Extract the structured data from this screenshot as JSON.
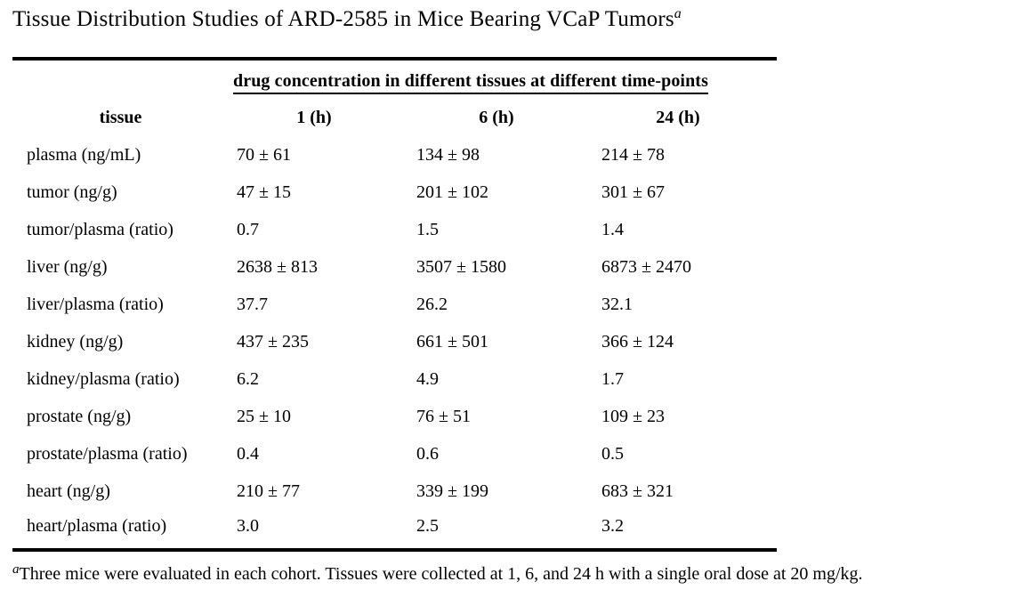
{
  "title": {
    "text": "Tissue Distribution Studies of ARD-2585 in Mice Bearing VCaP Tumors",
    "footnote_marker": "a"
  },
  "table": {
    "spanner_header": "drug concentration in different tissues at different time-points",
    "columns": [
      "tissue",
      "1 (h)",
      "6 (h)",
      "24 (h)"
    ],
    "rows": [
      {
        "tissue": "plasma (ng/mL)",
        "values": [
          "70 ± 61",
          "134 ± 98",
          "214 ± 78"
        ]
      },
      {
        "tissue": "tumor (ng/g)",
        "values": [
          "47 ± 15",
          "201 ± 102",
          "301 ± 67"
        ]
      },
      {
        "tissue": "tumor/plasma (ratio)",
        "values": [
          "0.7",
          "1.5",
          "1.4"
        ]
      },
      {
        "tissue": "liver (ng/g)",
        "values": [
          "2638 ± 813",
          "3507 ± 1580",
          "6873 ± 2470"
        ]
      },
      {
        "tissue": "liver/plasma (ratio)",
        "values": [
          "37.7",
          "26.2",
          "32.1"
        ]
      },
      {
        "tissue": "kidney (ng/g)",
        "values": [
          "437 ± 235",
          "661 ± 501",
          "366 ± 124"
        ]
      },
      {
        "tissue": "kidney/plasma (ratio)",
        "values": [
          "6.2",
          "4.9",
          "1.7"
        ]
      },
      {
        "tissue": "prostate (ng/g)",
        "values": [
          "25 ± 10",
          "76 ± 51",
          "109 ± 23"
        ]
      },
      {
        "tissue": "prostate/plasma (ratio)",
        "values": [
          "0.4",
          "0.6",
          "0.5"
        ]
      },
      {
        "tissue": "heart (ng/g)",
        "values": [
          "210 ± 77",
          "339 ± 199",
          "683 ± 321"
        ]
      },
      {
        "tissue": "heart/plasma (ratio)",
        "values": [
          "3.0",
          "2.5",
          "3.2"
        ]
      }
    ]
  },
  "footnote": {
    "marker": "a",
    "text": "Three mice were evaluated in each cohort. Tissues were collected at 1, 6, and 24 h with a single oral dose at 20 mg/kg."
  },
  "colors": {
    "background": "#ffffff",
    "text": "#000000",
    "rule": "#000000"
  }
}
